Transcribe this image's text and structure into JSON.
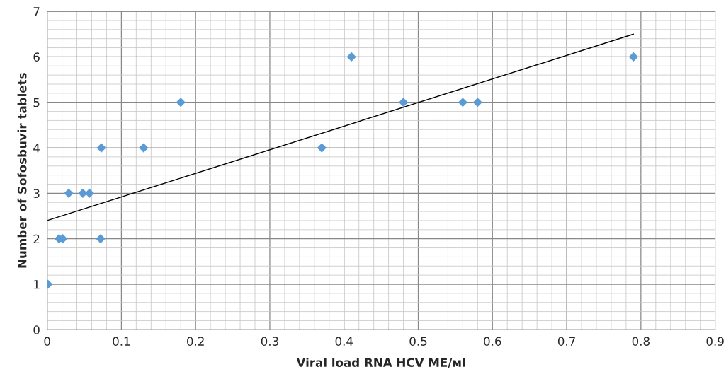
{
  "chart_data": {
    "type": "scatter",
    "xlabel": "Viral load RNA HCV ME/мl",
    "ylabel": "Number of Sofosbuvir tablets",
    "xlim": [
      0,
      0.9
    ],
    "xticks": [
      {
        "value": 0,
        "label": "0"
      },
      0.1,
      0.2,
      0.3,
      0.4,
      0.5,
      0.6,
      0.7,
      0.8,
      0.9
    ],
    "ylim": [
      0,
      7
    ],
    "yticks": [
      0,
      1,
      2,
      3,
      4,
      5,
      6,
      7
    ],
    "grid": true,
    "series": [
      {
        "marker": "diamond",
        "color": "#5b9bd5",
        "x": [
          0.001,
          0.016,
          0.021,
          0.029,
          0.048,
          0.057,
          0.072,
          0.073,
          0.13,
          0.18,
          0.37,
          0.41,
          0.48,
          0.56,
          0.58,
          0.79
        ],
        "values": [
          1,
          2,
          2,
          3,
          3,
          3,
          2,
          4,
          4,
          5,
          4,
          6,
          5,
          5,
          5,
          6
        ]
      },
      {
        "type": "line",
        "color": "#000000",
        "x": [
          0,
          0.79
        ],
        "values": [
          2.4,
          6.5
        ]
      }
    ]
  }
}
